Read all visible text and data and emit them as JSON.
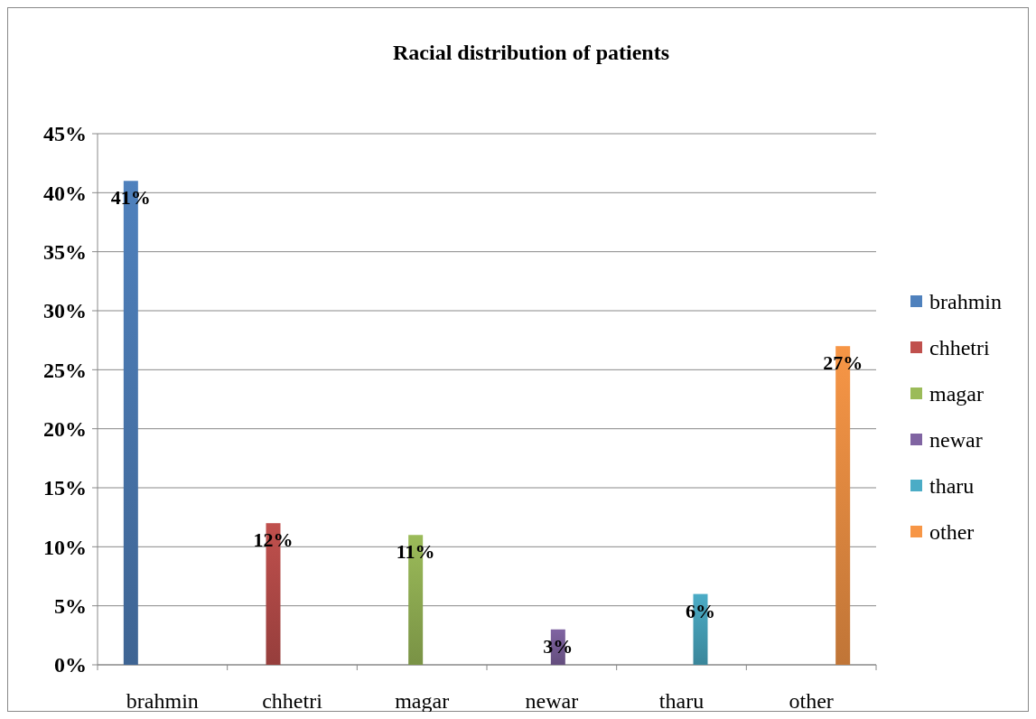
{
  "chart_data": {
    "type": "bar",
    "title": "Racial distribution of patients",
    "categories": [
      "brahmin",
      "chhetri",
      "magar",
      "newar",
      "tharu",
      "other"
    ],
    "series": [
      {
        "name": "brahmin",
        "color": "#4f81bd",
        "values": [
          41,
          null,
          null,
          null,
          null,
          null
        ],
        "value_labels": [
          "41%",
          null,
          null,
          null,
          null,
          null
        ]
      },
      {
        "name": "chhetri",
        "color": "#c0504d",
        "values": [
          null,
          12,
          null,
          null,
          null,
          null
        ],
        "value_labels": [
          null,
          "12%",
          null,
          null,
          null,
          null
        ]
      },
      {
        "name": "magar",
        "color": "#9bbb59",
        "values": [
          null,
          null,
          11,
          null,
          null,
          null
        ],
        "value_labels": [
          null,
          null,
          "11%",
          null,
          null,
          null
        ]
      },
      {
        "name": "newar",
        "color": "#8064a2",
        "values": [
          null,
          null,
          null,
          3,
          null,
          null
        ],
        "value_labels": [
          null,
          null,
          null,
          "3%",
          null,
          null
        ]
      },
      {
        "name": "tharu",
        "color": "#4bacc6",
        "values": [
          null,
          null,
          null,
          null,
          6,
          null
        ],
        "value_labels": [
          null,
          null,
          null,
          null,
          "6%",
          null
        ]
      },
      {
        "name": "other",
        "color": "#f79646",
        "values": [
          null,
          null,
          null,
          null,
          null,
          27
        ],
        "value_labels": [
          null,
          null,
          null,
          null,
          null,
          "27%"
        ]
      }
    ],
    "ylim": [
      0,
      45
    ],
    "yticks": [
      {
        "value": 0,
        "label": "0%"
      },
      {
        "value": 5,
        "label": "5%"
      },
      {
        "value": 10,
        "label": "10%"
      },
      {
        "value": 15,
        "label": "15%"
      },
      {
        "value": 20,
        "label": "20%"
      },
      {
        "value": 25,
        "label": "25%"
      },
      {
        "value": 30,
        "label": "30%"
      },
      {
        "value": 35,
        "label": "35%"
      },
      {
        "value": 40,
        "label": "40%"
      },
      {
        "value": 45,
        "label": "45%"
      }
    ],
    "grid": "y",
    "legend": "right"
  }
}
